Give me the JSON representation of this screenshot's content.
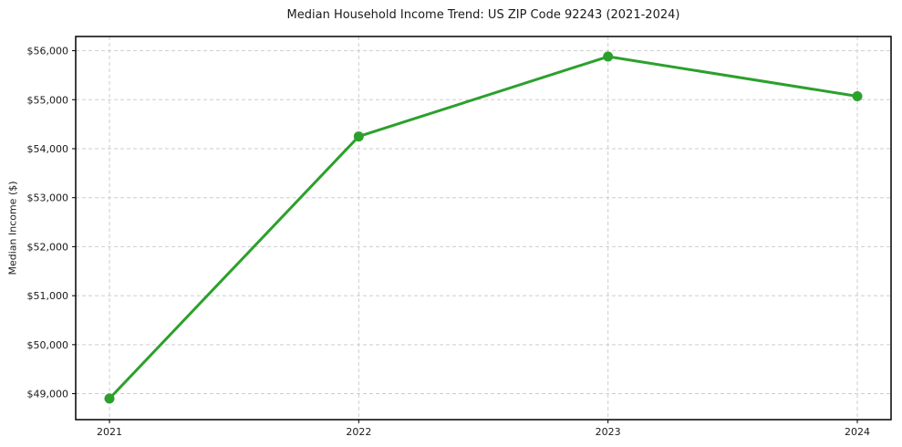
{
  "figure": {
    "background": "#ffffff"
  },
  "chart_data": {
    "type": "line",
    "title": "Median Household Income Trend: US ZIP Code 92243 (2021-2024)",
    "xlabel": "",
    "ylabel": "Median Income ($)",
    "categories": [
      "2021",
      "2022",
      "2023",
      "2024"
    ],
    "series": [
      {
        "name": "Median Household Income",
        "values": [
          48900,
          54250,
          55880,
          55070
        ],
        "color": "#2ca02c",
        "marker": "circle",
        "marker_size": 11,
        "line_width": 3
      }
    ],
    "y_ticks": [
      49000,
      50000,
      51000,
      52000,
      53000,
      54000,
      55000,
      56000
    ],
    "y_tick_labels": [
      "$49,000",
      "$50,000",
      "$51,000",
      "$52,000",
      "$53,000",
      "$54,000",
      "$55,000",
      "$56,000"
    ],
    "ylim": [
      48470,
      56290
    ],
    "grid": "both",
    "grid_style": "dashed",
    "grid_color": "#cdcdcd",
    "axis_color": "#000000",
    "text_color": "#1a1a1a",
    "legend": "none"
  }
}
